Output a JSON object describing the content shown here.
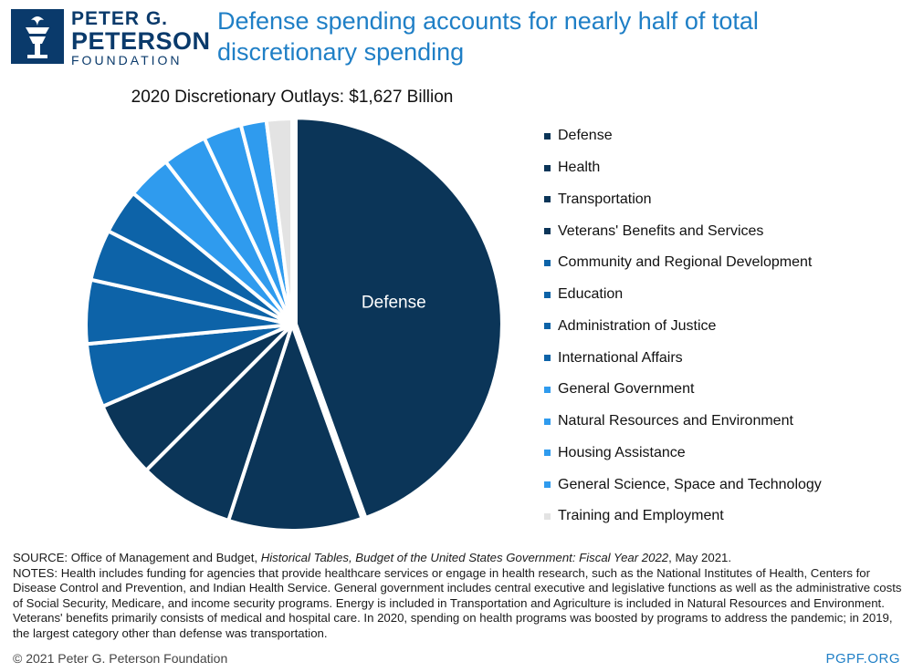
{
  "logo": {
    "line1": "PETER G.",
    "line2": "PETERSON",
    "line3": "FOUNDATION"
  },
  "headline": "Defense spending accounts for nearly half of total discretionary spending",
  "chart_data": {
    "type": "pie",
    "title": "2020 Discretionary Outlays: $1,627 Billion",
    "unit": "percent of total (estimated)",
    "slices": [
      {
        "name": "Defense",
        "value": 44.5,
        "color": "#0b3558",
        "label": "Defense"
      },
      {
        "name": "Health",
        "value": 10.5,
        "color": "#0b3558"
      },
      {
        "name": "Transportation",
        "value": 7.5,
        "color": "#0b3558"
      },
      {
        "name": "Veterans' Benefits and Services",
        "value": 6.0,
        "color": "#0b3558"
      },
      {
        "name": "Community and Regional Development",
        "value": 5.0,
        "color": "#0d63a8"
      },
      {
        "name": "Education",
        "value": 5.0,
        "color": "#0d63a8"
      },
      {
        "name": "Administration of Justice",
        "value": 4.0,
        "color": "#0d63a8"
      },
      {
        "name": "International Affairs",
        "value": 3.5,
        "color": "#0d63a8"
      },
      {
        "name": "General Government",
        "value": 3.5,
        "color": "#2f9bee"
      },
      {
        "name": "Natural Resources and Environment",
        "value": 3.5,
        "color": "#2f9bee"
      },
      {
        "name": "Housing Assistance",
        "value": 3.0,
        "color": "#2f9bee"
      },
      {
        "name": "General Science, Space and Technology",
        "value": 2.0,
        "color": "#2f9bee"
      },
      {
        "name": "Training and Employment",
        "value": 2.0,
        "color": "#e3e3e3"
      }
    ]
  },
  "notes": {
    "source_prefix": "SOURCE: Office of Management and Budget, ",
    "source_italic": "Historical Tables, Budget of the United States Government: Fiscal Year 2022",
    "source_suffix": ", May 2021.",
    "notes_text": "NOTES: Health includes funding for agencies that provide healthcare services or engage in health research, such as the National Institutes of Health, Centers for Disease Control and Prevention, and Indian Health Service. General government includes central executive and legislative functions as well as the administrative costs of Social Security, Medicare, and income security programs. Energy is included in Transportation and Agriculture is included in Natural Resources and Environment. Veterans' benefits primarily consists of medical and hospital care. In 2020, spending on health programs was boosted by programs to address the pandemic; in 2019, the largest category other than defense was transportation."
  },
  "footer": {
    "copyright": "© 2021 Peter G. Peterson Foundation",
    "site": "PGPF.ORG"
  }
}
